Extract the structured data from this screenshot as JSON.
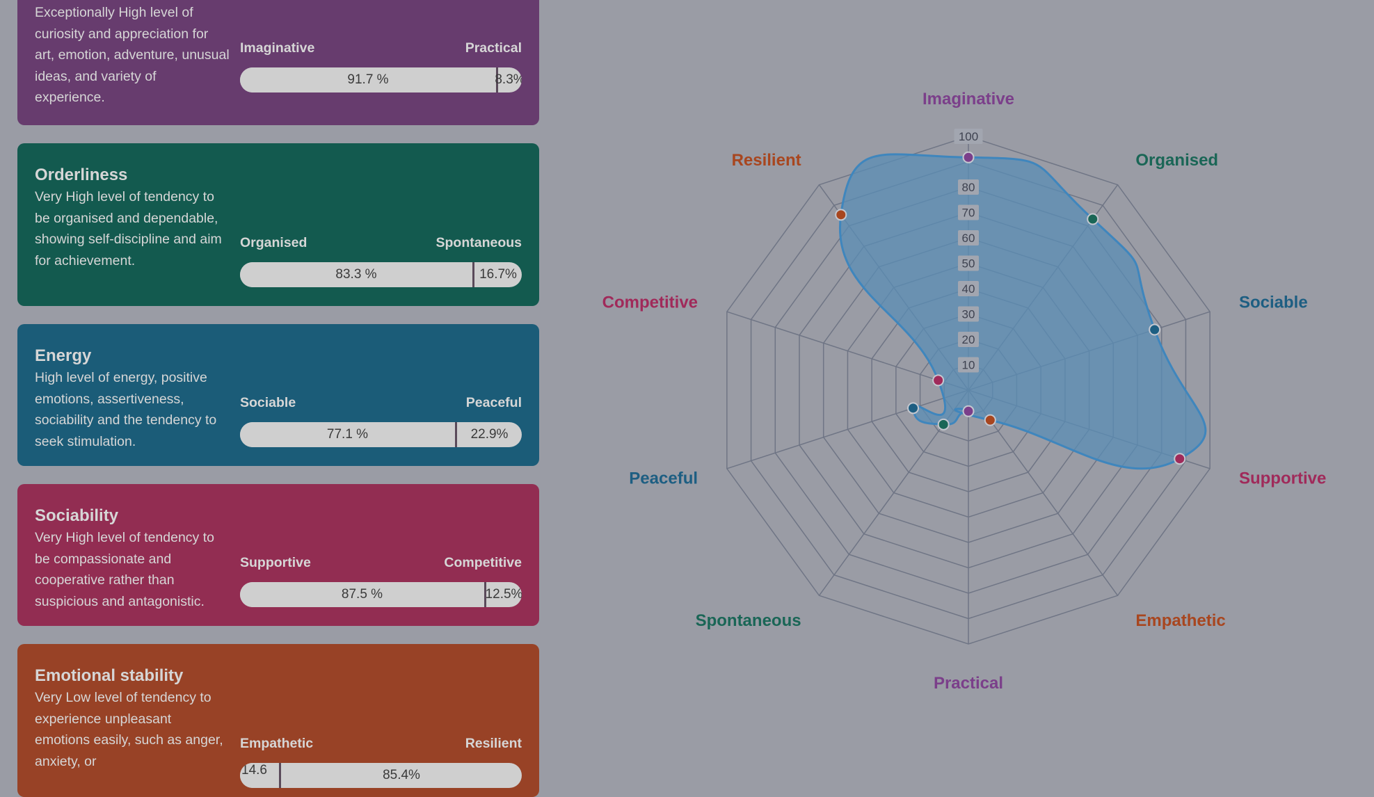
{
  "cards": [
    {
      "title": "",
      "description": "Exceptionally High level of curiosity and appreciation for art, emotion, adventure, unusual ideas, and variety of experience.",
      "left_label": "Imaginative",
      "right_label": "Practical",
      "left_value": "91.7 %",
      "right_value": "8.3%",
      "fraction": 0.917,
      "color": "#673c6e"
    },
    {
      "title": "Orderliness",
      "description": "Very High level of tendency to be organised and dependable, showing self-discipline and aim for achievement.",
      "left_label": "Organised",
      "right_label": "Spontaneous",
      "left_value": "83.3 %",
      "right_value": "16.7%",
      "fraction": 0.833,
      "color": "#135a4f"
    },
    {
      "title": "Energy",
      "description": "High level of energy, positive emotions, assertiveness, sociability and the tendency to seek stimulation.",
      "left_label": "Sociable",
      "right_label": "Peaceful",
      "left_value": "77.1 %",
      "right_value": "22.9%",
      "fraction": 0.771,
      "color": "#1b5c78"
    },
    {
      "title": "Sociability",
      "description": "Very High level of tendency to be compassionate and cooperative rather than suspicious and antagonistic.",
      "left_label": "Supportive",
      "right_label": "Competitive",
      "left_value": "87.5 %",
      "right_value": "12.5%",
      "fraction": 0.875,
      "color": "#922d52"
    },
    {
      "title": "Emotional stability",
      "description": "Very Low level of tendency to experience unpleasant emotions easily, such as anger, anxiety, or",
      "left_label": "Empathetic",
      "right_label": "Resilient",
      "left_value": "14.6",
      "right_value": "85.4%",
      "fraction": 0.146,
      "color": "#984226"
    }
  ],
  "chart_data": {
    "type": "radar",
    "title": "",
    "axes": [
      "Imaginative",
      "Organised",
      "Sociable",
      "Supportive",
      "Empathetic",
      "Practical",
      "Spontaneous",
      "Peaceful",
      "Competitive",
      "Resilient"
    ],
    "axis_colors": [
      "#7b3f8a",
      "#1a6656",
      "#1d5e82",
      "#a02a5a",
      "#a8461f",
      "#7b3f8a",
      "#1a6656",
      "#1d5e82",
      "#a02a5a",
      "#a8461f"
    ],
    "values": [
      91.7,
      83.3,
      77.1,
      87.5,
      14.6,
      8.3,
      16.7,
      22.9,
      12.5,
      85.4
    ],
    "tick_labels": [
      "10",
      "20",
      "30",
      "40",
      "50",
      "60",
      "70",
      "80",
      "",
      "100"
    ],
    "rmax": 100,
    "grid": true,
    "fill_color": "#5a8db5",
    "line_color": "#3f86bd"
  }
}
